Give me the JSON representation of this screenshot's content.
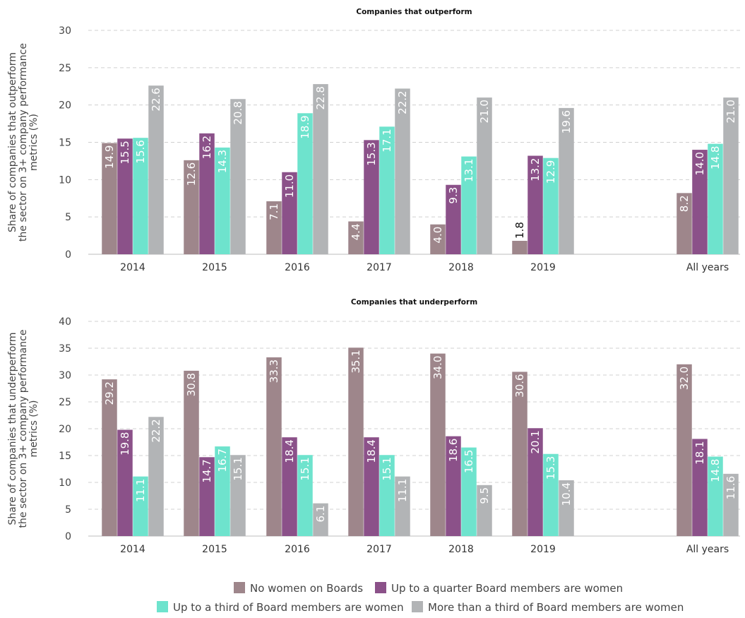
{
  "colors": {
    "no_women": "#9e868b",
    "quarter": "#8b5189",
    "third": "#6ee3cd",
    "more_third": "#b2b4b6"
  },
  "chart_data": [
    {
      "type": "bar",
      "title": "Companies that outperform",
      "ylabel": [
        "Share of companies that outperform",
        "the sector on 3+ company performance",
        "metrics (%)"
      ],
      "ylim": [
        0,
        30
      ],
      "yticks": [
        0,
        5,
        10,
        15,
        20,
        25,
        30
      ],
      "grid": true,
      "categories": [
        "2014",
        "2015",
        "2016",
        "2017",
        "2018",
        "2019",
        "All years"
      ],
      "series": [
        {
          "name": "No women on Boards",
          "values": [
            14.9,
            12.6,
            7.1,
            4.4,
            4.0,
            1.8,
            8.2
          ]
        },
        {
          "name": "Up to a quarter Board members are women",
          "values": [
            15.5,
            16.2,
            11.0,
            15.3,
            9.3,
            13.2,
            14.0
          ]
        },
        {
          "name": "Up to a third of Board members are women",
          "values": [
            15.6,
            14.3,
            18.9,
            17.1,
            13.1,
            12.9,
            14.8
          ]
        },
        {
          "name": "More than a third of Board members are women",
          "values": [
            22.6,
            20.8,
            22.8,
            22.2,
            21.0,
            19.6,
            21.0
          ]
        }
      ]
    },
    {
      "type": "bar",
      "title": "Companies that underperform",
      "ylabel": [
        "Share of companies that underperform",
        "the sector on 3+ company performance",
        "metrics (%)"
      ],
      "ylim": [
        0,
        40
      ],
      "yticks": [
        0,
        5,
        10,
        15,
        20,
        25,
        30,
        35,
        40
      ],
      "grid": true,
      "categories": [
        "2014",
        "2015",
        "2016",
        "2017",
        "2018",
        "2019",
        "All years"
      ],
      "series": [
        {
          "name": "No women on Boards",
          "values": [
            29.2,
            30.8,
            33.3,
            35.1,
            34.0,
            30.6,
            32.0
          ]
        },
        {
          "name": "Up to a quarter Board members are women",
          "values": [
            19.8,
            14.7,
            18.4,
            18.4,
            18.6,
            20.1,
            18.1
          ]
        },
        {
          "name": "Up to a third of Board members are women",
          "values": [
            11.1,
            16.7,
            15.1,
            15.1,
            16.5,
            15.3,
            14.8
          ]
        },
        {
          "name": "More than a third of Board members are women",
          "values": [
            22.2,
            15.1,
            6.1,
            11.1,
            9.5,
            10.4,
            11.6
          ]
        }
      ]
    }
  ],
  "legend": [
    {
      "label": "No women on Boards",
      "color_key": "no_women"
    },
    {
      "label": "Up to a quarter Board members are women",
      "color_key": "quarter"
    },
    {
      "label": "Up to a third of Board members are women",
      "color_key": "third"
    },
    {
      "label": "More than a third of Board members are women",
      "color_key": "more_third"
    }
  ]
}
